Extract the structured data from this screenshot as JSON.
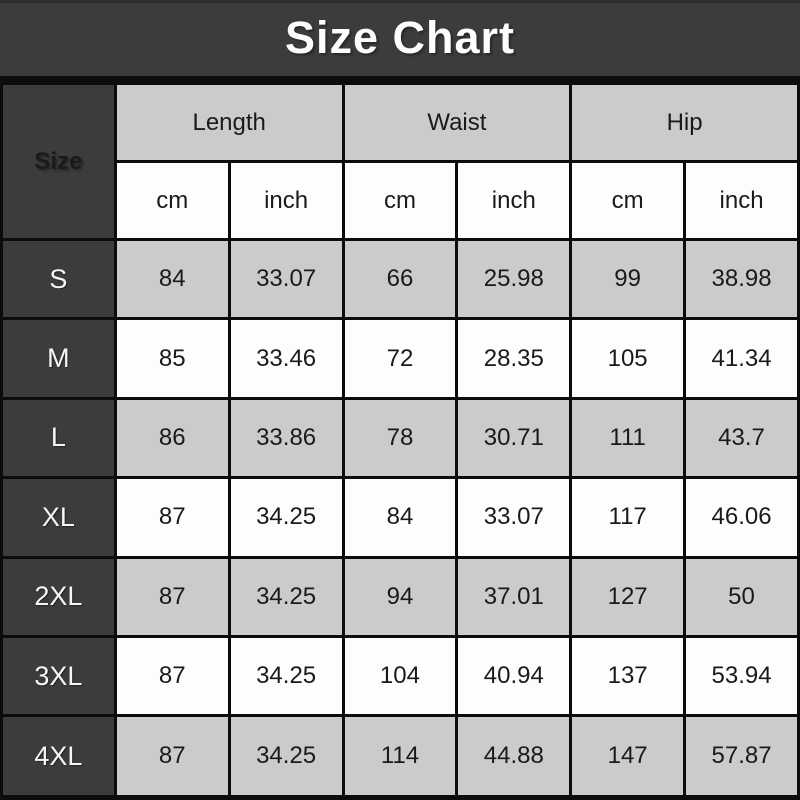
{
  "title": "Size Chart",
  "colors": {
    "dark": "#3c3c3c",
    "light_gray": "#cbcbcb",
    "white": "#fdfdfd",
    "border": "#0c0c0c"
  },
  "table": {
    "corner_label": "Size",
    "groups": [
      {
        "label": "Length"
      },
      {
        "label": "Waist"
      },
      {
        "label": "Hip"
      }
    ],
    "unit_labels": [
      "cm",
      "inch",
      "cm",
      "inch",
      "cm",
      "inch"
    ],
    "rows": [
      {
        "size": "S",
        "values": [
          "84",
          "33.07",
          "66",
          "25.98",
          "99",
          "38.98"
        ]
      },
      {
        "size": "M",
        "values": [
          "85",
          "33.46",
          "72",
          "28.35",
          "105",
          "41.34"
        ]
      },
      {
        "size": "L",
        "values": [
          "86",
          "33.86",
          "78",
          "30.71",
          "111",
          "43.7"
        ]
      },
      {
        "size": "XL",
        "values": [
          "87",
          "34.25",
          "84",
          "33.07",
          "117",
          "46.06"
        ]
      },
      {
        "size": "2XL",
        "values": [
          "87",
          "34.25",
          "94",
          "37.01",
          "127",
          "50"
        ]
      },
      {
        "size": "3XL",
        "values": [
          "87",
          "34.25",
          "104",
          "40.94",
          "137",
          "53.94"
        ]
      },
      {
        "size": "4XL",
        "values": [
          "87",
          "34.25",
          "114",
          "44.88",
          "147",
          "57.87"
        ]
      }
    ]
  },
  "chart_data": {
    "type": "table",
    "title": "Size Chart",
    "columns": [
      "Size",
      "Length cm",
      "Length inch",
      "Waist cm",
      "Waist inch",
      "Hip cm",
      "Hip inch"
    ],
    "rows": [
      [
        "S",
        84,
        33.07,
        66,
        25.98,
        99,
        38.98
      ],
      [
        "M",
        85,
        33.46,
        72,
        28.35,
        105,
        41.34
      ],
      [
        "L",
        86,
        33.86,
        78,
        30.71,
        111,
        43.7
      ],
      [
        "XL",
        87,
        34.25,
        84,
        33.07,
        117,
        46.06
      ],
      [
        "2XL",
        87,
        34.25,
        94,
        37.01,
        127,
        50
      ],
      [
        "3XL",
        87,
        34.25,
        104,
        40.94,
        137,
        53.94
      ],
      [
        "4XL",
        87,
        34.25,
        114,
        44.88,
        147,
        57.87
      ]
    ]
  }
}
